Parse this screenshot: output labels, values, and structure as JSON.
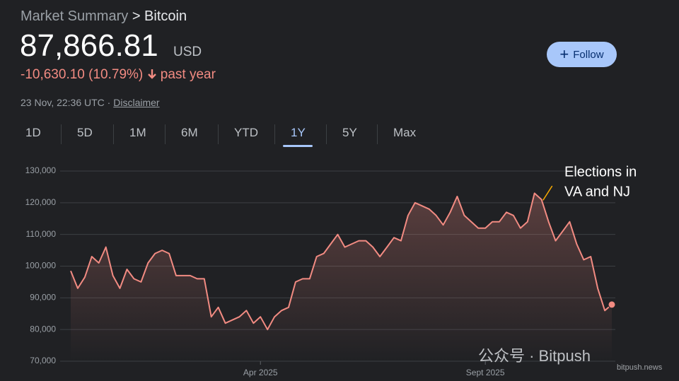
{
  "header": {
    "breadcrumb": "Market Summary",
    "breadcrumb_current": "> Bitcoin",
    "price": "87,866.81",
    "currency": "USD",
    "change": "-10,630.10 (10.79%)",
    "change_period": "past year",
    "timestamp": "23 Nov, 22:36 UTC ·",
    "disclaimer": "Disclaimer",
    "follow": "Follow"
  },
  "tabs": {
    "items": [
      "1D",
      "5D",
      "1M",
      "6M",
      "YTD",
      "1Y",
      "5Y",
      "Max"
    ],
    "active": 5
  },
  "watermark": {
    "name": "公众号 · Bitpush",
    "site": "bitpush.news"
  },
  "chart_data": {
    "type": "line",
    "categories": [
      null,
      null,
      null,
      null,
      null,
      null,
      null,
      null,
      null,
      null,
      null,
      null,
      null,
      null,
      null,
      null,
      null,
      null,
      null,
      null,
      null,
      null,
      null,
      null,
      null,
      null,
      null,
      "Apr 2025",
      null,
      null,
      null,
      null,
      null,
      null,
      null,
      null,
      null,
      null,
      null,
      null,
      null,
      null,
      null,
      null,
      null,
      null,
      null,
      null,
      null,
      null,
      null,
      null,
      null,
      null,
      null,
      null,
      null,
      null,
      null,
      "Sept 2025",
      null,
      null,
      null,
      null,
      null,
      null,
      null,
      null,
      null,
      null,
      null,
      null,
      null,
      null,
      null,
      null,
      null,
      null
    ],
    "series": [
      {
        "name": "Bitcoin",
        "color": "#f28b82",
        "values": [
          98500,
          93000,
          96500,
          103000,
          101000,
          106000,
          97000,
          93000,
          99000,
          96000,
          95000,
          101000,
          104000,
          105000,
          104000,
          97000,
          97000,
          97000,
          96000,
          96000,
          84000,
          87000,
          82000,
          83000,
          84000,
          86000,
          82000,
          84000,
          80000,
          84000,
          86000,
          87000,
          95000,
          96000,
          96000,
          103000,
          104000,
          107000,
          110000,
          106000,
          107000,
          108000,
          108000,
          106000,
          103000,
          106000,
          109000,
          108000,
          116000,
          120000,
          119000,
          118000,
          116000,
          113000,
          117000,
          122000,
          116000,
          114000,
          112000,
          112000,
          114000,
          114000,
          117000,
          116000,
          112000,
          114000,
          123000,
          121000,
          114000,
          108000,
          111000,
          114000,
          107000,
          102000,
          103000,
          93000,
          86000,
          87866.81
        ]
      }
    ],
    "ylim": [
      70000,
      130000
    ],
    "yticks": [
      {
        "value": 70000,
        "label": "70,000"
      },
      {
        "value": 80000,
        "label": "80,000"
      },
      {
        "value": 90000,
        "label": "90,000"
      },
      {
        "value": 100000,
        "label": "100,000"
      },
      {
        "value": 110000,
        "label": "110,000"
      },
      {
        "value": 120000,
        "label": "120,000"
      },
      {
        "value": 130000,
        "label": "130,000"
      }
    ],
    "grid": true,
    "annotation": {
      "lines": [
        "Elections in",
        "VA and NJ"
      ],
      "index": 66
    }
  }
}
